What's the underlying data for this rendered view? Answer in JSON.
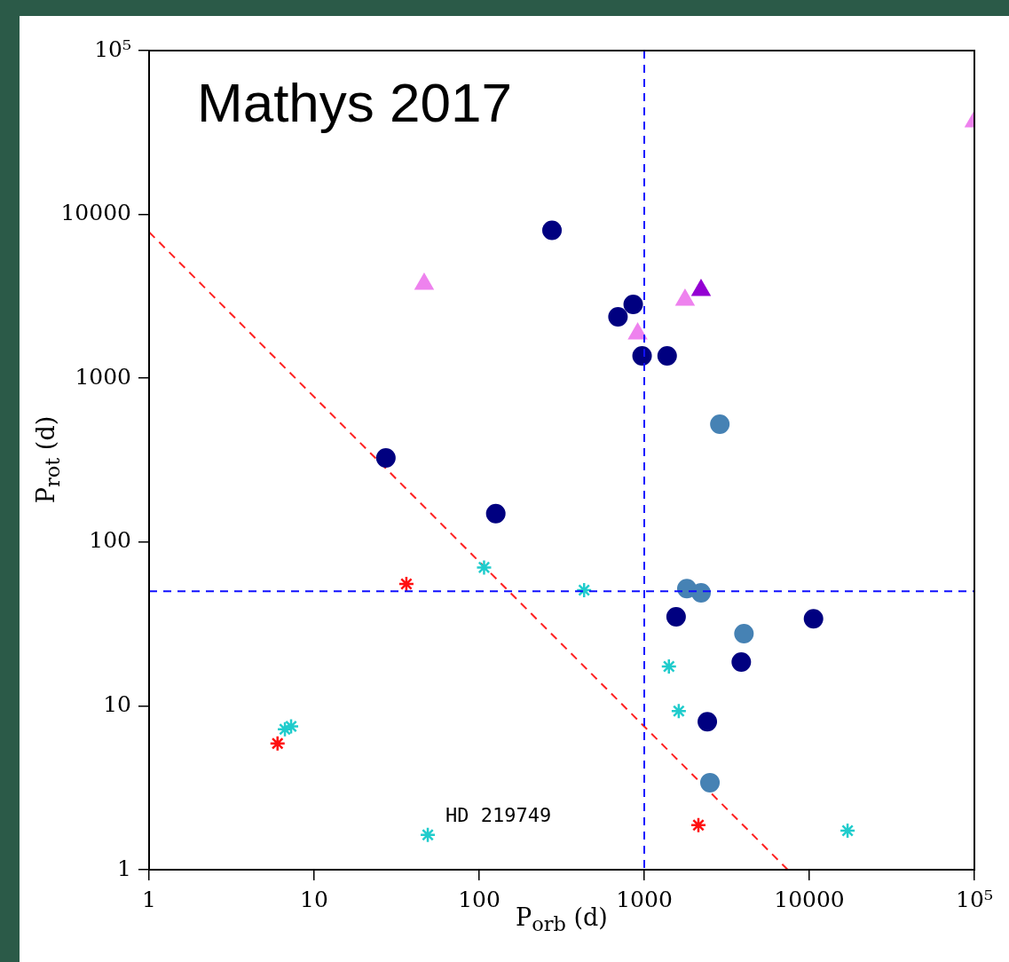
{
  "chart_data": {
    "type": "scatter",
    "xlabel": "P$_{orb}$ (d)",
    "ylabel": "P$_{rot}$ (d)",
    "log": "xy",
    "grid": false,
    "legend": false,
    "xlim": [
      1,
      100000
    ],
    "ylim": [
      1,
      100000
    ],
    "xticks": [
      1,
      10,
      100,
      1000,
      10000,
      {
        "value": 100000,
        "label": "10⁵"
      }
    ],
    "yticks": [
      1,
      10,
      100,
      1000,
      10000,
      {
        "value": 100000,
        "label": "10⁵"
      }
    ],
    "annotations": [
      "Mathys 2017",
      {
        "text": "HD 219749",
        "x": 48.8,
        "y": 1.63
      }
    ],
    "ref_lines": [
      {
        "axis": "x",
        "value": 1000,
        "color": "#1010ff",
        "line_style": "dashed"
      },
      {
        "axis": "y",
        "value": 50,
        "color": "#1010ff",
        "line_style": "dashed"
      }
    ],
    "series": [
      {
        "marker": "circle",
        "color": "#000080",
        "x": [
          276,
          693,
          857,
          970,
          1376,
          27.2,
          126,
          1559,
          10600,
          3870,
          2410
        ],
        "values": [
          8000,
          2370,
          2820,
          1370,
          1370,
          326,
          149,
          35,
          34,
          18.5,
          8.0
        ]
      },
      {
        "marker": "circle",
        "color": "#4682b4",
        "x": [
          2870,
          1811,
          2208,
          4017,
          2500
        ],
        "values": [
          524,
          52,
          49,
          27.6,
          3.4
        ]
      },
      {
        "marker": "triangle",
        "color": "#ee82ee",
        "x": [
          46.4,
          912,
          1766,
          100000
        ],
        "values": [
          3760,
          1870,
          3005,
          36900
        ]
      },
      {
        "marker": "triangle",
        "color": "#9400d3",
        "x": [
          2208
        ],
        "values": [
          3447
        ]
      },
      {
        "marker": "cross",
        "color": "#20cccc",
        "x": [
          107,
          432,
          1410,
          1618,
          6.65,
          7.25,
          48.8,
          17050
        ],
        "values": [
          70,
          50.9,
          17.4,
          9.3,
          7.2,
          7.5,
          1.63,
          1.73
        ]
      },
      {
        "marker": "cross",
        "color": "#ff1010",
        "x": [
          36.2,
          6.0,
          2128
        ],
        "values": [
          55.5,
          5.9,
          1.87
        ]
      },
      {
        "type": "line",
        "marker": "none",
        "line_style": "dashed",
        "color": "#ff2020",
        "x": [
          1,
          7400
        ],
        "values": [
          7800,
          1
        ]
      }
    ]
  }
}
